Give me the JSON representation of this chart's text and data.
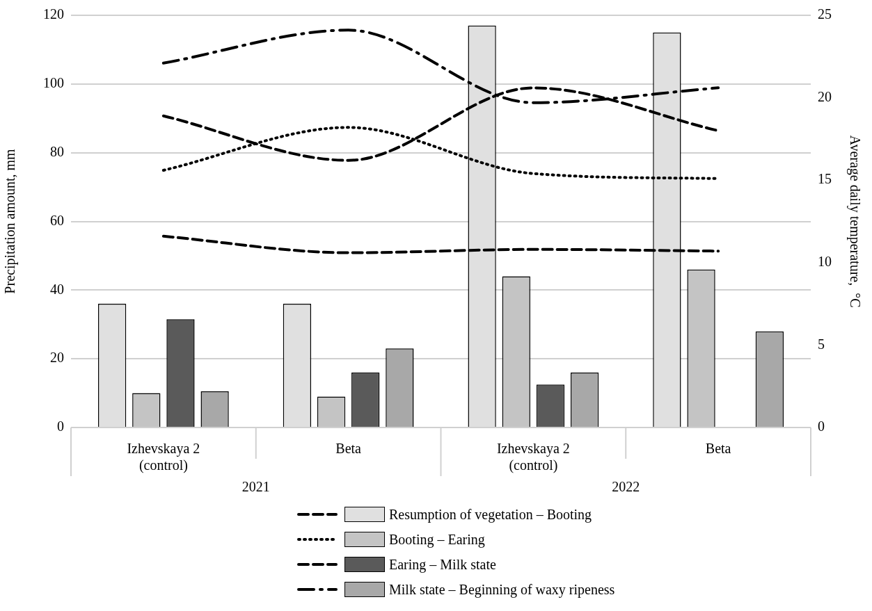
{
  "chart_data": {
    "type": "bar",
    "ylabel": "Precipitation amount, mm",
    "y2label": "Average daily temperature,  °C",
    "categories": [
      "Izhevskaya 2 (control)",
      "Beta",
      "Izhevskaya 2 (control)",
      "Beta"
    ],
    "annotations": [
      "2021",
      "2022"
    ],
    "series": [
      {
        "name": "Resumption of vegetation – Booting",
        "color": "#e0e0e0",
        "values": [
          36,
          36,
          117,
          115
        ]
      },
      {
        "name": "Booting – Earing",
        "color": "#c4c4c4",
        "values": [
          10,
          9,
          44,
          46
        ]
      },
      {
        "name": "Earing – Milk state",
        "color": "#5a5a5a",
        "values": [
          31.5,
          16,
          12.5,
          null
        ]
      },
      {
        "name": "Milk state – Beginning of waxy ripeness",
        "color": "#a8a8a8",
        "values": [
          10.5,
          23,
          16,
          28
        ]
      },
      {
        "type": "line",
        "axis": "y2",
        "color": "#000000",
        "line_style": "dashed",
        "values": [
          18.9,
          16.2,
          20.6,
          18.0
        ]
      },
      {
        "type": "line",
        "axis": "y2",
        "color": "#000000",
        "line_style": "dotted",
        "values": [
          15.6,
          18.2,
          15.4,
          15.1
        ]
      },
      {
        "type": "line",
        "axis": "y2",
        "color": "#000000",
        "line_style": "dashed",
        "values": [
          11.6,
          10.6,
          10.8,
          10.7
        ]
      },
      {
        "type": "line",
        "axis": "y2",
        "color": "#000000",
        "line_style": "dashdot",
        "values": [
          22.1,
          24.1,
          19.7,
          20.6
        ]
      }
    ],
    "ylim": [
      0,
      120
    ],
    "yticks": [
      0,
      20,
      40,
      60,
      80,
      100,
      120
    ],
    "y2lim": [
      0,
      25
    ],
    "y2ticks": [
      0,
      5,
      10,
      15,
      20,
      25
    ],
    "grid": "y",
    "legend": "bottom",
    "marker": "none"
  }
}
